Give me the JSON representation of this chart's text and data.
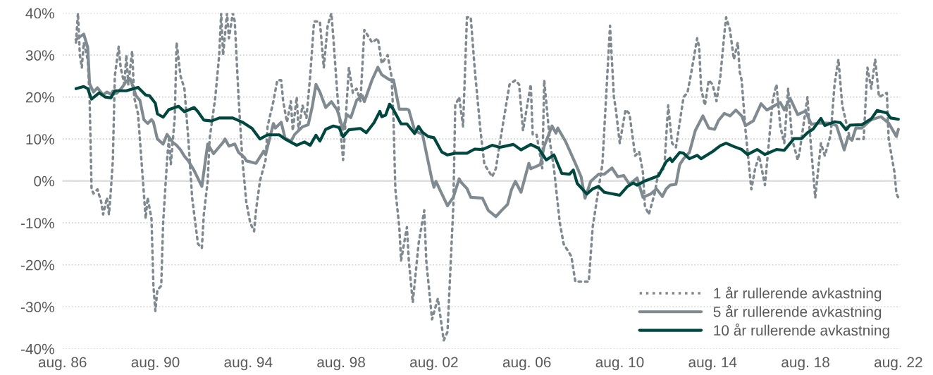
{
  "chart_data": {
    "type": "line",
    "xlim": [
      "1986-08",
      "2022-09"
    ],
    "xticks": [
      {
        "value": "1986-08",
        "label": "aug. 86"
      },
      {
        "value": "1990-08",
        "label": "aug. 90"
      },
      {
        "value": "1994-08",
        "label": "aug. 94"
      },
      {
        "value": "1998-08",
        "label": "aug. 98"
      },
      {
        "value": "2002-08",
        "label": "aug. 02"
      },
      {
        "value": "2006-08",
        "label": "aug. 06"
      },
      {
        "value": "2010-08",
        "label": "aug. 10"
      },
      {
        "value": "2014-08",
        "label": "aug. 14"
      },
      {
        "value": "2018-08",
        "label": "aug. 18"
      },
      {
        "value": "2022-08",
        "label": "aug. 22"
      }
    ],
    "ylim": [
      -40,
      40
    ],
    "yticks": [
      {
        "value": -40,
        "label": "-40%"
      },
      {
        "value": -30,
        "label": "-30%"
      },
      {
        "value": -20,
        "label": "-20%"
      },
      {
        "value": -10,
        "label": "-10%"
      },
      {
        "value": 0,
        "label": "0%"
      },
      {
        "value": 10,
        "label": "10%"
      },
      {
        "value": 20,
        "label": "20%"
      },
      {
        "value": 30,
        "label": "30%"
      },
      {
        "value": 40,
        "label": "40%"
      }
    ],
    "grid": "y",
    "legend": "bottom right",
    "ref_lines": [
      {
        "axis": "y",
        "value": 0,
        "color": "#d9d9d9",
        "line_style": "solid"
      }
    ],
    "series": [
      {
        "name": "1 år rullerende avkastning",
        "color": "#7f8990",
        "line_style": "dotted",
        "x": [
          "1987-03",
          "1987-04",
          "1987-05",
          "1987-06",
          "1987-07",
          "1987-09",
          "1987-10",
          "1987-11",
          "1987-12",
          "1988-02",
          "1988-04",
          "1988-05",
          "1988-07",
          "1988-08",
          "1988-09",
          "1988-10",
          "1988-11",
          "1989-01",
          "1989-02",
          "1989-04",
          "1989-05",
          "1989-06",
          "1989-08",
          "1989-09",
          "1989-11",
          "1990-02",
          "1990-03",
          "1990-04",
          "1990-06",
          "1990-07",
          "1990-08",
          "1990-09",
          "1990-11",
          "1990-12",
          "1991-02",
          "1991-03",
          "1991-04",
          "1991-06",
          "1991-07",
          "1991-09",
          "1991-11",
          "1992-01",
          "1992-03",
          "1992-06",
          "1992-08",
          "1992-09",
          "1992-11",
          "1992-12",
          "1993-03",
          "1993-05",
          "1993-06",
          "1993-07",
          "1993-09",
          "1993-10",
          "1993-12",
          "1994-01",
          "1994-03",
          "1994-05",
          "1994-07",
          "1994-09",
          "1994-11",
          "1994-12",
          "1995-02",
          "1995-05",
          "1995-06",
          "1995-09",
          "1995-11",
          "1996-01",
          "1996-02",
          "1996-04",
          "1996-06",
          "1996-07",
          "1996-09",
          "1996-10",
          "1996-12",
          "1997-02",
          "1997-04",
          "1997-06",
          "1997-09",
          "1997-11",
          "1998-01",
          "1998-03",
          "1998-04",
          "1998-06",
          "1998-09",
          "1998-12",
          "1999-02",
          "1999-04",
          "1999-06",
          "1999-08",
          "1999-12",
          "2000-03",
          "2000-05",
          "2000-08",
          "2000-10",
          "2000-11",
          "2000-12",
          "2001-02",
          "2001-03",
          "2001-06",
          "2001-07",
          "2001-09",
          "2001-12",
          "2002-03",
          "2002-04",
          "2002-07",
          "2002-10",
          "2003-01",
          "2003-03",
          "2003-06",
          "2003-07",
          "2003-09",
          "2003-11",
          "2004-01",
          "2004-03",
          "2004-05",
          "2004-08",
          "2004-09",
          "2004-10",
          "2005-02",
          "2005-04",
          "2005-06",
          "2005-11",
          "2006-02",
          "2006-04",
          "2006-06",
          "2006-10",
          "2006-11",
          "2007-01",
          "2007-04",
          "2007-05",
          "2007-08",
          "2007-10",
          "2008-01",
          "2008-03",
          "2008-07",
          "2008-09",
          "2009-04",
          "2009-06",
          "2009-08",
          "2009-11",
          "2010-03",
          "2010-05",
          "2010-06",
          "2010-08",
          "2010-11",
          "2011-01",
          "2011-04",
          "2011-06",
          "2011-08",
          "2011-09",
          "2011-11",
          "2012-02",
          "2012-04",
          "2012-07",
          "2012-09",
          "2012-11",
          "2013-01",
          "2013-05",
          "2013-07",
          "2013-09",
          "2013-12",
          "2014-01",
          "2014-02",
          "2014-04",
          "2014-06",
          "2014-08",
          "2014-10",
          "2014-12",
          "2015-02",
          "2015-03",
          "2015-05",
          "2015-07",
          "2015-09",
          "2015-10",
          "2015-11",
          "2016-01",
          "2016-04",
          "2016-06",
          "2016-08",
          "2016-11",
          "2017-01",
          "2017-03",
          "2017-05",
          "2017-07",
          "2017-09",
          "2017-11",
          "2018-01",
          "2018-04",
          "2018-05",
          "2018-09",
          "2018-10",
          "2019-01",
          "2019-04",
          "2019-06",
          "2019-09",
          "2019-11",
          "2020-01",
          "2020-03",
          "2020-05",
          "2020-07",
          "2020-11",
          "2021-02",
          "2021-04",
          "2021-06",
          "2021-08",
          "2021-10",
          "2022-02",
          "2022-03",
          "2022-06",
          "2022-07",
          "2022-08"
        ],
        "values": [
          33,
          40,
          30,
          27,
          33,
          29,
          20,
          -2,
          -3,
          -2,
          -5,
          -8,
          -4,
          -8,
          -2,
          5,
          25,
          32,
          27,
          23,
          30,
          23,
          31,
          20,
          16,
          -3,
          -9,
          -4,
          -9,
          -25,
          -31,
          -26,
          -25,
          -10,
          5,
          10,
          4,
          15,
          33,
          25,
          22,
          10,
          -4,
          -15,
          -16,
          -8,
          0,
          10,
          20,
          30,
          40,
          30,
          40,
          34,
          40,
          38,
          20,
          5,
          -5,
          -10,
          -12,
          -7,
          0,
          5,
          13,
          19,
          24,
          24,
          19,
          14,
          19,
          12,
          20,
          12,
          18,
          15,
          25,
          38,
          38,
          27,
          37,
          40,
          34,
          21,
          5,
          27,
          21,
          22,
          19,
          36,
          33,
          34,
          28,
          30,
          25,
          15,
          -2,
          -11,
          -19,
          -11,
          -19,
          -29,
          -15,
          -7,
          -19,
          -33,
          -28,
          -38,
          -36,
          -6,
          18,
          20,
          13,
          39,
          39,
          27,
          12,
          8,
          4,
          1,
          3,
          9,
          23,
          24,
          23,
          12,
          23,
          11,
          11,
          3,
          24,
          9,
          3,
          -10,
          -15,
          -18,
          -24,
          -24,
          -11,
          -5,
          4,
          37,
          20,
          17,
          9,
          17,
          16,
          6,
          7,
          2,
          -6,
          -8,
          -3,
          2,
          3,
          18,
          9,
          8,
          20,
          21,
          26,
          34,
          32,
          22,
          18,
          24,
          23,
          19,
          25,
          35,
          39,
          36,
          29,
          33,
          26,
          24,
          12,
          -2,
          3,
          6,
          -1,
          9,
          19,
          23,
          13,
          9,
          22,
          10,
          5,
          7,
          20,
          13,
          -4,
          9,
          6,
          11,
          23,
          29,
          18,
          14,
          10,
          10,
          10,
          27,
          22,
          29,
          20,
          21,
          10,
          2,
          -3,
          -4
        ]
      },
      {
        "name": "5 år rullerende avkastning",
        "color": "#808a91",
        "line_style": "solid",
        "x": [
          "1987-03",
          "1987-07",
          "1987-09",
          "1987-10",
          "1987-12",
          "1988-02",
          "1988-05",
          "1988-07",
          "1988-09",
          "1988-10",
          "1988-12",
          "1989-03",
          "1989-05",
          "1989-07",
          "1989-08",
          "1989-10",
          "1989-12",
          "1990-02",
          "1990-04",
          "1990-06",
          "1990-07",
          "1990-09",
          "1990-12",
          "1991-02",
          "1991-05",
          "1991-07",
          "1991-09",
          "1991-11",
          "1992-01",
          "1992-04",
          "1992-08",
          "1992-11",
          "1993-02",
          "1993-07",
          "1993-08",
          "1993-10",
          "1994-01",
          "1994-03",
          "1994-06",
          "1994-07",
          "1994-12",
          "1995-04",
          "1995-05",
          "1995-09",
          "1995-10",
          "1996-01",
          "1996-03",
          "1996-06",
          "1996-08",
          "1996-12",
          "1997-03",
          "1997-05",
          "1997-07",
          "1997-09",
          "1997-12",
          "1998-03",
          "1998-06",
          "1998-09",
          "1998-11",
          "1999-01",
          "1999-04",
          "1999-07",
          "1999-08",
          "1999-12",
          "2000-03",
          "2000-05",
          "2000-09",
          "2000-11",
          "2001-02",
          "2001-06",
          "2001-07",
          "2001-10",
          "2002-02",
          "2002-07",
          "2002-08",
          "2002-09",
          "2002-11",
          "2003-03",
          "2003-06",
          "2003-09",
          "2003-10",
          "2004-01",
          "2004-03",
          "2004-09",
          "2004-12",
          "2005-04",
          "2005-07",
          "2005-10",
          "2005-12",
          "2006-02",
          "2006-05",
          "2006-09",
          "2006-10",
          "2007-03",
          "2007-05",
          "2007-09",
          "2007-11",
          "2007-12",
          "2008-04",
          "2008-09",
          "2008-12",
          "2009-02",
          "2009-05",
          "2009-09",
          "2009-12",
          "2010-04",
          "2010-07",
          "2010-10",
          "2011-01",
          "2011-05",
          "2011-08",
          "2011-12",
          "2012-03",
          "2012-06",
          "2012-08",
          "2012-10",
          "2013-01",
          "2013-03",
          "2013-05",
          "2013-08",
          "2013-11",
          "2014-03",
          "2014-06",
          "2014-09",
          "2014-11",
          "2015-02",
          "2015-05",
          "2015-08",
          "2015-11",
          "2016-01",
          "2016-05",
          "2016-09",
          "2016-12",
          "2017-05",
          "2017-07",
          "2017-09",
          "2017-12",
          "2018-04",
          "2018-08",
          "2018-11",
          "2019-03",
          "2019-08",
          "2019-12",
          "2020-04",
          "2020-06",
          "2020-08",
          "2020-10",
          "2021-01",
          "2021-06",
          "2021-11",
          "2022-03",
          "2022-07",
          "2022-08"
        ],
        "values": [
          33.7,
          35,
          31.9,
          23.2,
          21.2,
          22.2,
          20.5,
          21.2,
          20.6,
          21.4,
          20.9,
          22.4,
          23.8,
          24.3,
          23,
          20.3,
          19.2,
          14.6,
          13.7,
          14.6,
          14,
          10,
          8.8,
          11.1,
          9.2,
          8.5,
          7.4,
          5.9,
          4.8,
          2.5,
          -1.3,
          8.8,
          6.5,
          9.2,
          10,
          8.3,
          8.8,
          6.8,
          5.6,
          4.8,
          4.2,
          7.1,
          6.3,
          13.7,
          12.6,
          14,
          10.3,
          9.4,
          11.1,
          12.9,
          13.4,
          17.5,
          23,
          21.2,
          17.5,
          18.9,
          16.9,
          12.3,
          15.8,
          15.1,
          19.2,
          20.3,
          18.9,
          24.1,
          27.1,
          25.3,
          24.1,
          24.1,
          17.1,
          17.1,
          16.9,
          12,
          11.1,
          0.2,
          -1.5,
          -0.1,
          -2.1,
          -5.9,
          -3.9,
          0.5,
          -0.3,
          -1.8,
          -3.9,
          -4.1,
          -7,
          -8.5,
          -7,
          -5.6,
          -2.1,
          -0.1,
          -2.7,
          4.2,
          2.9,
          3.9,
          8.3,
          13.1,
          11.4,
          12.6,
          9.4,
          4.2,
          1,
          -4.1,
          -0.1,
          1.6,
          1.6,
          3.1,
          1,
          1.3,
          -0.8,
          0.7,
          -3.9,
          -3.1,
          -1.9,
          -3.7,
          -1.9,
          -1,
          -0.8,
          3.9,
          5.3,
          6.8,
          12,
          15.5,
          12.6,
          12.3,
          14.4,
          16.1,
          15.5,
          16.9,
          15.5,
          13.2,
          14.3,
          18.4,
          16.9,
          18.2,
          18.7,
          16.9,
          19.7,
          15.8,
          16.7,
          13.5,
          13.8,
          13.8,
          13.2,
          7.4,
          10.6,
          9.7,
          12.6,
          12.6,
          14.6,
          15.3,
          13.8,
          10.6,
          12.3
        ]
      },
      {
        "name": "10 år rullerende avkastning",
        "color": "#00483f",
        "line_style": "solid",
        "x": [
          "1987-03",
          "1987-07",
          "1987-09",
          "1987-11",
          "1988-03",
          "1988-06",
          "1988-09",
          "1988-11",
          "1989-05",
          "1989-11",
          "1990-03",
          "1990-05",
          "1990-08",
          "1990-09",
          "1990-12",
          "1991-03",
          "1991-08",
          "1991-11",
          "1992-04",
          "1992-06",
          "1992-09",
          "1993-01",
          "1993-05",
          "1993-12",
          "1994-05",
          "1994-10",
          "1995-02",
          "1995-06",
          "1995-12",
          "1996-03",
          "1996-09",
          "1997-01",
          "1997-04",
          "1997-07",
          "1997-09",
          "1997-12",
          "1998-04",
          "1998-07",
          "1998-09",
          "1998-12",
          "1999-06",
          "1999-09",
          "2000-01",
          "2000-04",
          "2000-05",
          "2000-07",
          "2000-09",
          "2000-11",
          "2001-03",
          "2001-06",
          "2001-10",
          "2001-12",
          "2002-02",
          "2002-05",
          "2002-08",
          "2002-10",
          "2002-12",
          "2003-03",
          "2003-07",
          "2004-01",
          "2004-05",
          "2004-09",
          "2005-02",
          "2005-06",
          "2006-01",
          "2006-05",
          "2006-10",
          "2007-02",
          "2007-06",
          "2007-10",
          "2008-02",
          "2008-06",
          "2008-08",
          "2008-10",
          "2009-03",
          "2009-06",
          "2009-09",
          "2009-12",
          "2010-08",
          "2010-12",
          "2011-03",
          "2011-05",
          "2011-09",
          "2012-04",
          "2012-08",
          "2012-10",
          "2012-11",
          "2013-03",
          "2013-05",
          "2013-08",
          "2013-12",
          "2014-02",
          "2014-08",
          "2014-12",
          "2015-03",
          "2015-07",
          "2015-11",
          "2016-02",
          "2016-07",
          "2016-11",
          "2017-05",
          "2017-09",
          "2018-02",
          "2018-06",
          "2018-09",
          "2018-12",
          "2019-04",
          "2019-06",
          "2019-11",
          "2020-02",
          "2020-05",
          "2020-07",
          "2021-01",
          "2021-06",
          "2021-09",
          "2022-02",
          "2022-04",
          "2022-08"
        ],
        "values": [
          22,
          22.5,
          22,
          19.5,
          21,
          20,
          19.8,
          21.5,
          21.5,
          22.3,
          20.5,
          20.3,
          18.5,
          16,
          15.2,
          17,
          17.8,
          16.5,
          17.5,
          16.5,
          14.5,
          14.3,
          15,
          15,
          14,
          12.5,
          10,
          11,
          11,
          10,
          8.5,
          9.3,
          8.5,
          10.9,
          9.5,
          12.3,
          13.1,
          12.7,
          10.5,
          12.2,
          12.5,
          11.5,
          13.9,
          16.6,
          15.3,
          15.7,
          18.3,
          17,
          13.6,
          13.6,
          11.3,
          13,
          11.6,
          10.6,
          10.3,
          8.6,
          6.9,
          6.2,
          6.6,
          6.6,
          7.6,
          7.5,
          8.5,
          8,
          8.7,
          7.4,
          8.7,
          7.8,
          5,
          6.2,
          1.8,
          1.6,
          2.6,
          -0.6,
          -3.1,
          -1.9,
          -1.3,
          -2.7,
          -3.4,
          -1.3,
          -0.5,
          -1,
          0,
          1.2,
          4.6,
          5.4,
          4.6,
          6.8,
          6.6,
          5.3,
          6.1,
          5.3,
          7,
          8.4,
          9,
          8.2,
          7.5,
          6.3,
          7.5,
          6.3,
          7.5,
          7.3,
          10.1,
          10.1,
          11.5,
          12.4,
          14.9,
          13.2,
          14.1,
          13.9,
          12.2,
          13.3,
          13.4,
          14.8,
          16.8,
          16.2,
          15,
          14.7
        ]
      }
    ]
  }
}
